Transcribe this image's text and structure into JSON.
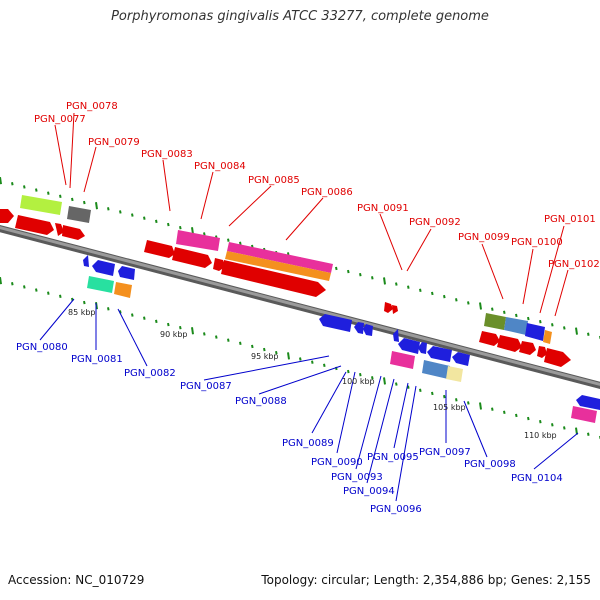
{
  "title": "Porphyromonas gingivalis ATCC 33277, complete genome",
  "footer": {
    "accession": "Accession: NC_010729",
    "topology": "Topology: circular;",
    "length": "Length: 2,354,886 bp;",
    "genes": "Genes: 2,155"
  },
  "colors": {
    "forward_label": "#e00000",
    "reverse_label": "#0000cc",
    "backbone": "#8a8a8a",
    "tick": "#1a8a1a"
  },
  "scale_labels": [
    "85 kbp",
    "90 kbp",
    "95 kbp",
    "100 kbp",
    "105 kbp",
    "110 kbp"
  ],
  "forward_gene_labels": [
    "PGN_0077",
    "PGN_0078",
    "PGN_0079",
    "PGN_0083",
    "PGN_0084",
    "PGN_0085",
    "PGN_0086",
    "PGN_0091",
    "PGN_0092",
    "PGN_0099",
    "PGN_0100",
    "PGN_0101",
    "PGN_0102"
  ],
  "reverse_gene_labels": [
    "PGN_0080",
    "PGN_0081",
    "PGN_0082",
    "PGN_0087",
    "PGN_0088",
    "PGN_0089",
    "PGN_0090",
    "PGN_0093",
    "PGN_0094",
    "PGN_0095",
    "PGN_0096",
    "PGN_0097",
    "PGN_0098",
    "PGN_0104"
  ]
}
